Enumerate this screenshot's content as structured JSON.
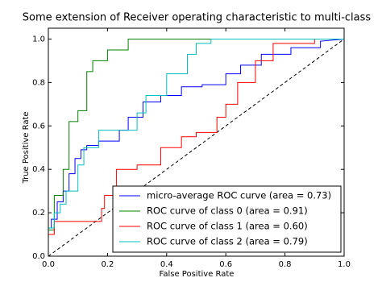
{
  "chart_data": {
    "type": "line",
    "title": "Some extension of Receiver operating characteristic to multi-class",
    "x_label": "False Positive Rate",
    "y_label": "True Positive Rate",
    "xlim": [
      0,
      1
    ],
    "ylim": [
      0,
      1.05
    ],
    "xticks": [
      {
        "value": 0,
        "label": "0.0"
      },
      0.2,
      0.4,
      0.6,
      0.8,
      {
        "value": 1,
        "label": "1.0"
      }
    ],
    "yticks": [
      {
        "value": 0,
        "label": "0.0"
      },
      0.2,
      0.4,
      0.6,
      0.8,
      {
        "value": 1,
        "label": "1.0"
      }
    ],
    "legend": "lower right",
    "series": [
      {
        "name": "micro-average ROC curve (area = 0.73)",
        "color": "#0000ff",
        "x": [
          0,
          0.01,
          0.01,
          0.03,
          0.03,
          0.05,
          0.05,
          0.07,
          0.07,
          0.09,
          0.09,
          0.11,
          0.11,
          0.13,
          0.13,
          0.17,
          0.17,
          0.24,
          0.24,
          0.27,
          0.27,
          0.32,
          0.32,
          0.38,
          0.38,
          0.45,
          0.45,
          0.52,
          0.52,
          0.6,
          0.6,
          0.65,
          0.65,
          0.72,
          0.72,
          0.82,
          0.82,
          0.92,
          0.92,
          1
        ],
        "values": [
          0.13,
          0.13,
          0.17,
          0.17,
          0.25,
          0.25,
          0.3,
          0.3,
          0.38,
          0.38,
          0.45,
          0.45,
          0.49,
          0.49,
          0.51,
          0.51,
          0.53,
          0.53,
          0.58,
          0.58,
          0.64,
          0.64,
          0.71,
          0.71,
          0.74,
          0.74,
          0.78,
          0.78,
          0.79,
          0.79,
          0.84,
          0.84,
          0.88,
          0.88,
          0.93,
          0.93,
          0.96,
          0.96,
          0.99,
          1
        ]
      },
      {
        "name": "ROC curve of class 0 (area = 0.91)",
        "color": "#008000",
        "x": [
          0,
          0.02,
          0.02,
          0.05,
          0.05,
          0.07,
          0.07,
          0.1,
          0.1,
          0.13,
          0.13,
          0.15,
          0.15,
          0.2,
          0.2,
          0.27,
          0.27,
          1
        ],
        "values": [
          0.12,
          0.12,
          0.28,
          0.28,
          0.4,
          0.4,
          0.62,
          0.62,
          0.67,
          0.67,
          0.85,
          0.85,
          0.9,
          0.9,
          0.95,
          0.95,
          1,
          1
        ]
      },
      {
        "name": "ROC curve of class 1 (area = 0.60)",
        "color": "#ff0000",
        "x": [
          0,
          0.02,
          0.02,
          0.18,
          0.18,
          0.19,
          0.19,
          0.23,
          0.23,
          0.3,
          0.3,
          0.38,
          0.38,
          0.45,
          0.45,
          0.5,
          0.5,
          0.57,
          0.57,
          0.6,
          0.6,
          0.64,
          0.64,
          0.7,
          0.7,
          0.76,
          0.76,
          0.9,
          0.9,
          1
        ],
        "values": [
          0.1,
          0.1,
          0.16,
          0.16,
          0.22,
          0.22,
          0.28,
          0.28,
          0.4,
          0.4,
          0.42,
          0.42,
          0.5,
          0.5,
          0.55,
          0.55,
          0.57,
          0.57,
          0.64,
          0.64,
          0.7,
          0.7,
          0.8,
          0.8,
          0.9,
          0.9,
          0.98,
          0.98,
          1,
          1
        ]
      },
      {
        "name": "ROC curve of class 2 (area = 0.79)",
        "color": "#00bfbf",
        "x": [
          0,
          0.02,
          0.02,
          0.04,
          0.04,
          0.06,
          0.06,
          0.1,
          0.1,
          0.12,
          0.12,
          0.17,
          0.17,
          0.3,
          0.3,
          0.33,
          0.33,
          0.4,
          0.4,
          0.47,
          0.47,
          0.5,
          0.5,
          0.55,
          0.55,
          1
        ],
        "values": [
          0.13,
          0.13,
          0.2,
          0.2,
          0.24,
          0.24,
          0.3,
          0.3,
          0.42,
          0.42,
          0.5,
          0.5,
          0.58,
          0.58,
          0.66,
          0.66,
          0.74,
          0.74,
          0.84,
          0.84,
          0.93,
          0.93,
          0.98,
          0.98,
          1,
          1
        ]
      }
    ]
  }
}
